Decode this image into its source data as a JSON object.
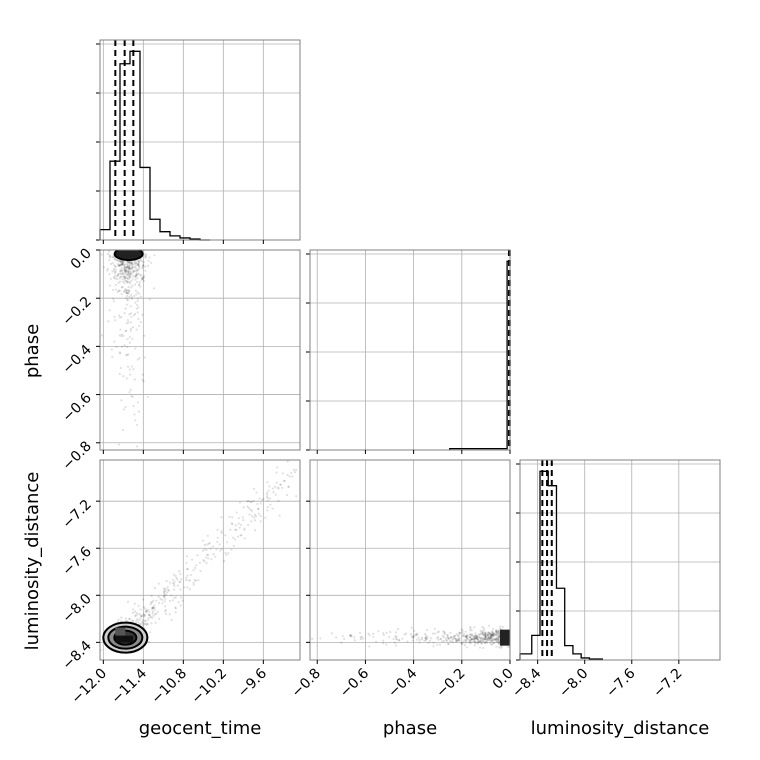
{
  "chart_data": {
    "type": "corner",
    "parameters": [
      "geocent_time",
      "phase",
      "luminosity_distance"
    ],
    "xlabels": [
      "geocent_time",
      "phase",
      "luminosity_distance"
    ],
    "ylabels": [
      "",
      "phase",
      "luminosity_distance"
    ],
    "grid": true,
    "ranges": {
      "geocent_time": [
        -12.05,
        -9.05
      ],
      "phase": [
        -0.83,
        0.0
      ],
      "luminosity_distance": [
        -8.55,
        -6.85
      ]
    },
    "ticks": {
      "geocent_time": [
        "-12.0",
        "-11.4",
        "-10.8",
        "-10.2",
        "-9.6"
      ],
      "phase_x": [
        "-0.8",
        "-0.6",
        "-0.4",
        "-0.2",
        "0.0"
      ],
      "phase_y": [
        "0.0",
        "-0.2",
        "-0.4",
        "-0.6",
        "-0.8"
      ],
      "luminosity_distance_x": [
        "-8.4",
        "-8.0",
        "-7.6",
        "-7.2"
      ],
      "luminosity_distance_y": [
        "-7.2",
        "-7.6",
        "-8.0",
        "-8.4"
      ]
    },
    "tick_values": {
      "geocent_time": [
        -12.0,
        -11.4,
        -10.8,
        -10.2,
        -9.6
      ],
      "phase": [
        -0.8,
        -0.6,
        -0.4,
        -0.2,
        0.0
      ],
      "luminosity_distance": [
        -8.4,
        -8.0,
        -7.6,
        -7.2
      ]
    },
    "marginals": {
      "geocent_time": {
        "bin_edges": [
          -12.05,
          -11.9,
          -11.75,
          -11.6,
          -11.45,
          -11.3,
          -11.15,
          -11.0,
          -10.85,
          -10.7,
          -10.55,
          -10.4
        ],
        "counts": [
          5,
          38,
          85,
          91,
          35,
          10,
          4,
          2,
          1,
          0.5,
          0
        ],
        "quantiles": [
          -11.82,
          -11.68,
          -11.55
        ]
      },
      "phase": {
        "bin_edges": [
          -0.25,
          -0.012,
          0.0
        ],
        "counts": [
          0.7,
          94
        ],
        "quantiles": [
          -0.004,
          -0.002,
          -0.001
        ]
      },
      "luminosity_distance": {
        "bin_edges": [
          -8.55,
          -8.45,
          -8.38,
          -8.31,
          -8.24,
          -8.17,
          -8.1,
          -8.03,
          -7.96,
          -7.85
        ],
        "counts": [
          3,
          12,
          92,
          85,
          35,
          7,
          3,
          1,
          0.5
        ],
        "quantiles": [
          -8.36,
          -8.32,
          -8.28
        ]
      }
    },
    "joint": [
      {
        "x": "geocent_time",
        "y": "phase",
        "mode": [
          -11.62,
          0.0
        ],
        "spread": [
          0.2,
          0.03
        ],
        "contours": 1
      },
      {
        "x": "geocent_time",
        "y": "luminosity_distance",
        "mode": [
          -11.7,
          -8.36
        ],
        "spread": [
          0.2,
          0.05
        ],
        "contours": 3
      },
      {
        "x": "phase",
        "y": "luminosity_distance",
        "mode": [
          -0.005,
          -8.36
        ],
        "spread": [
          0.3,
          0.03
        ],
        "contours": 0
      }
    ]
  }
}
